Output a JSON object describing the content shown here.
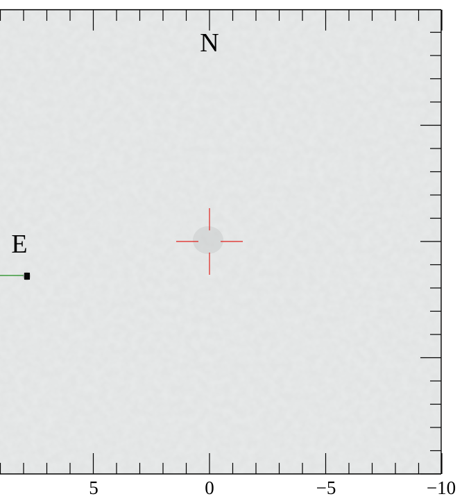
{
  "image": {
    "compass": {
      "north_label": "N",
      "east_label": "E"
    },
    "x_axis": {
      "tick_labels": [
        "5",
        "0",
        "−5",
        "−10"
      ],
      "tick_values": [
        5,
        0,
        -5,
        -10
      ],
      "min": 9,
      "max": -10
    },
    "marker_color": "#e0201c",
    "source_line_color": "#1a8a1a",
    "background_gray": "#d9dcdc"
  }
}
